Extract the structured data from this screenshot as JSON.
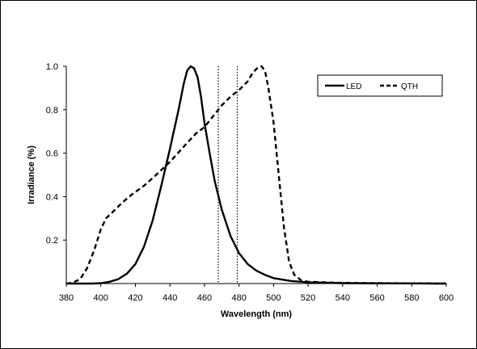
{
  "chart_data": {
    "type": "line",
    "title": "",
    "xlabel": "Wavelength (nm)",
    "ylabel": "Irradiance (%)",
    "xlim": [
      380,
      600
    ],
    "ylim": [
      0,
      1
    ],
    "x_ticks": [
      "380",
      "400",
      "420",
      "440",
      "460",
      "480",
      "500",
      "520",
      "540",
      "560",
      "580",
      "600"
    ],
    "y_ticks": [
      "0.2",
      "0.4",
      "0.6",
      "0.8",
      "1.0"
    ],
    "legend_position": "top-right",
    "series": [
      {
        "name": "LED",
        "style": "solid",
        "color": "#000000",
        "points": [
          [
            380,
            0
          ],
          [
            395,
            0
          ],
          [
            400,
            0.002
          ],
          [
            405,
            0.008
          ],
          [
            410,
            0.02
          ],
          [
            415,
            0.045
          ],
          [
            420,
            0.09
          ],
          [
            425,
            0.17
          ],
          [
            430,
            0.29
          ],
          [
            435,
            0.45
          ],
          [
            440,
            0.62
          ],
          [
            445,
            0.8
          ],
          [
            448,
            0.92
          ],
          [
            450,
            0.98
          ],
          [
            452,
            1.0
          ],
          [
            454,
            0.99
          ],
          [
            456,
            0.95
          ],
          [
            458,
            0.86
          ],
          [
            460,
            0.74
          ],
          [
            463,
            0.6
          ],
          [
            466,
            0.47
          ],
          [
            470,
            0.34
          ],
          [
            475,
            0.22
          ],
          [
            480,
            0.14
          ],
          [
            485,
            0.09
          ],
          [
            490,
            0.06
          ],
          [
            495,
            0.04
          ],
          [
            500,
            0.025
          ],
          [
            510,
            0.012
          ],
          [
            520,
            0.006
          ],
          [
            540,
            0.002
          ],
          [
            560,
            0.001
          ],
          [
            600,
            0
          ]
        ]
      },
      {
        "name": "QTH",
        "style": "dashed",
        "color": "#000000",
        "points": [
          [
            380,
            0
          ],
          [
            384,
            0.005
          ],
          [
            388,
            0.02
          ],
          [
            392,
            0.07
          ],
          [
            396,
            0.15
          ],
          [
            400,
            0.25
          ],
          [
            403,
            0.3
          ],
          [
            407,
            0.33
          ],
          [
            412,
            0.37
          ],
          [
            418,
            0.41
          ],
          [
            425,
            0.45
          ],
          [
            432,
            0.5
          ],
          [
            440,
            0.56
          ],
          [
            448,
            0.63
          ],
          [
            455,
            0.69
          ],
          [
            460,
            0.72
          ],
          [
            465,
            0.77
          ],
          [
            470,
            0.82
          ],
          [
            475,
            0.86
          ],
          [
            480,
            0.89
          ],
          [
            485,
            0.93
          ],
          [
            488,
            0.97
          ],
          [
            491,
            0.995
          ],
          [
            493,
            1.0
          ],
          [
            495,
            0.98
          ],
          [
            497,
            0.9
          ],
          [
            500,
            0.74
          ],
          [
            503,
            0.5
          ],
          [
            506,
            0.26
          ],
          [
            509,
            0.1
          ],
          [
            512,
            0.04
          ],
          [
            516,
            0.015
          ],
          [
            520,
            0.008
          ],
          [
            540,
            0.003
          ],
          [
            560,
            0.002
          ],
          [
            580,
            0.001
          ],
          [
            600,
            0
          ]
        ]
      }
    ],
    "reference_lines": [
      {
        "x": 468,
        "style": "dotted"
      },
      {
        "x": 479,
        "style": "dotted"
      }
    ]
  }
}
